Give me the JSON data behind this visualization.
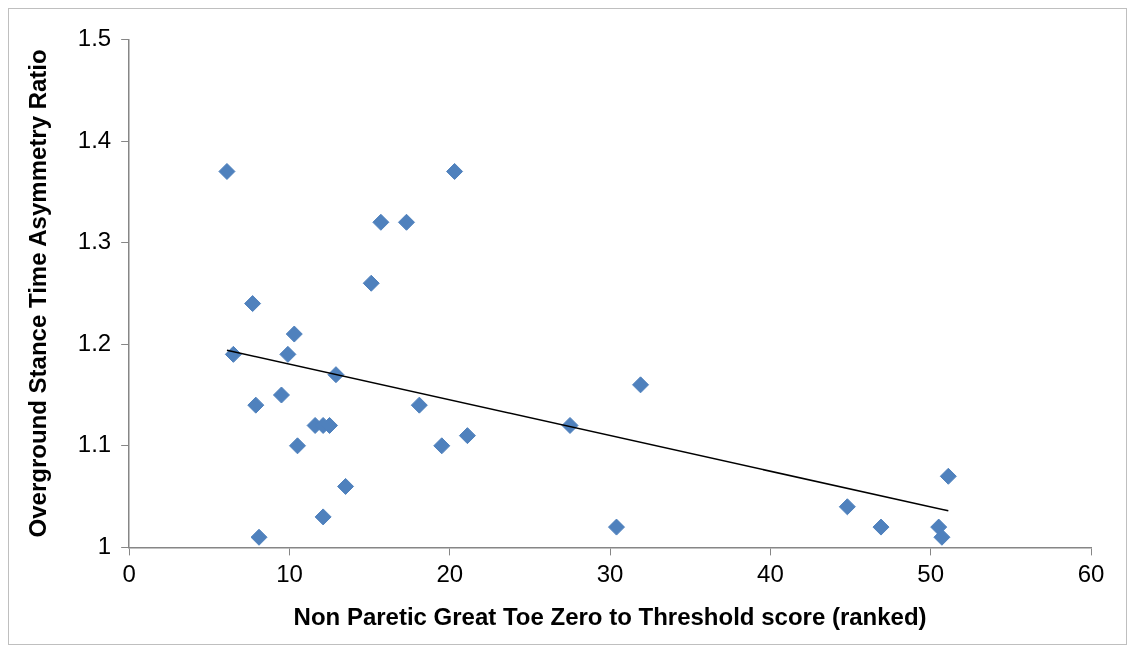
{
  "chart_data": {
    "type": "scatter",
    "xlabel": "Non Paretic Great Toe Zero to Threshold score (ranked)",
    "ylabel": "Overground Stance Time Asymmetry Ratio",
    "xlim": [
      0,
      60
    ],
    "xticks": [
      0,
      10,
      20,
      30,
      40,
      50,
      60
    ],
    "ylim": [
      1,
      1.5
    ],
    "yticks": [
      1,
      1.1,
      1.2,
      1.3,
      1.4,
      1.5
    ],
    "grid": false,
    "legend": false,
    "marker": "diamond",
    "series": [
      {
        "color": "#4f81bd",
        "x": [
          6.1,
          6.5,
          7.7,
          7.9,
          8.1,
          9.5,
          9.9,
          10.3,
          10.5,
          11.6,
          12.1,
          12.5,
          12.1,
          12.9,
          13.5,
          15.1,
          15.7,
          17.3,
          18.1,
          19.5,
          20.3,
          21.1,
          27.5,
          30.4,
          31.9,
          44.8,
          46.9,
          50.5,
          50.7,
          51.1
        ],
        "values": [
          1.37,
          1.19,
          1.24,
          1.14,
          1.01,
          1.15,
          1.19,
          1.21,
          1.1,
          1.12,
          1.12,
          1.12,
          1.03,
          1.17,
          1.06,
          1.26,
          1.32,
          1.32,
          1.14,
          1.1,
          1.37,
          1.11,
          1.12,
          1.02,
          1.16,
          1.04,
          1.02,
          1.02,
          1.01,
          1.07
        ]
      },
      {
        "type": "line",
        "color": "#000000",
        "marker": "none",
        "x": [
          6.1,
          51.1
        ],
        "values": [
          1.194,
          1.036
        ]
      }
    ]
  }
}
